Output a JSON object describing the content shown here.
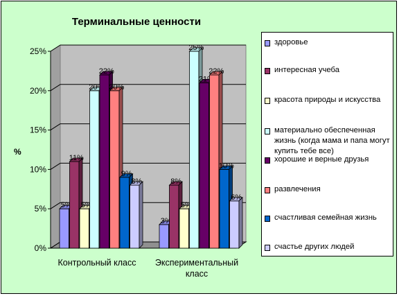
{
  "chart_data": {
    "type": "bar",
    "title": "Терминальные ценности",
    "ylabel": "%",
    "xlabel": "",
    "ylim": [
      0,
      25
    ],
    "yticks": [
      "0%",
      "5%",
      "10%",
      "15%",
      "20%",
      "25%"
    ],
    "grid": true,
    "legend_position": "right",
    "categories": [
      "Контрольный класс",
      "Экспериментальный класс"
    ],
    "series": [
      {
        "name": "здоровье",
        "color": "#9999ff",
        "values": [
          5,
          3
        ],
        "labels": [
          "5%",
          "3%"
        ]
      },
      {
        "name": "интересная учеба",
        "color": "#993366",
        "values": [
          11,
          8
        ],
        "labels": [
          "11%",
          "8%"
        ]
      },
      {
        "name": "красота природы и искусства",
        "color": "#ffffcc",
        "values": [
          5,
          5
        ],
        "labels": [
          "5%",
          "5%"
        ]
      },
      {
        "name": "материально обеспеченная жизнь (когда мама и папа могут купить тебе все)",
        "color": "#ccffff",
        "values": [
          20,
          25
        ],
        "labels": [
          "20%",
          "25%"
        ]
      },
      {
        "name": "хорошие и верные друзья",
        "color": "#660066",
        "values": [
          22,
          21
        ],
        "labels": [
          "22%",
          "21%"
        ]
      },
      {
        "name": "развлечения",
        "color": "#ff8080",
        "values": [
          20,
          22
        ],
        "labels": [
          "20%",
          "22%"
        ]
      },
      {
        "name": "счастливая семейная жизнь",
        "color": "#0066cc",
        "values": [
          9,
          10
        ],
        "labels": [
          "9%",
          "10%"
        ]
      },
      {
        "name": "счастье других людей",
        "color": "#ccccff",
        "values": [
          8,
          6
        ],
        "labels": [
          "8%",
          "6%"
        ]
      }
    ]
  }
}
